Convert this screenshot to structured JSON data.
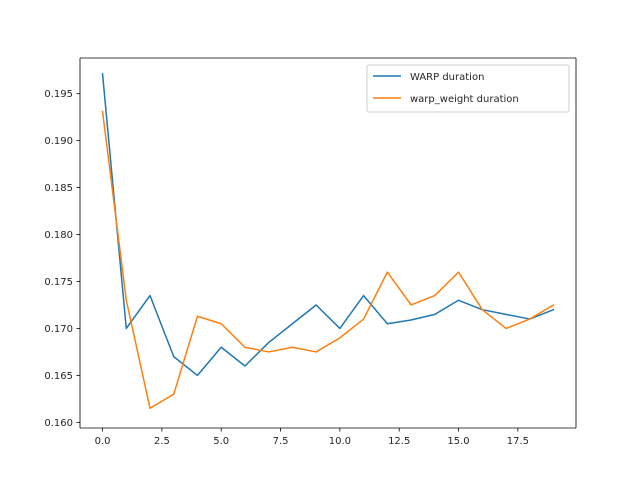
{
  "chart_data": {
    "type": "line",
    "title": "",
    "xlabel": "",
    "ylabel": "",
    "x": [
      0,
      1,
      2,
      3,
      4,
      5,
      6,
      7,
      8,
      9,
      10,
      11,
      12,
      13,
      14,
      15,
      16,
      17,
      18,
      19
    ],
    "xlim": [
      -0.95,
      19.95
    ],
    "ylim": [
      0.1594,
      0.1988
    ],
    "xticks": [
      0.0,
      2.5,
      5.0,
      7.5,
      10.0,
      12.5,
      15.0,
      17.5
    ],
    "xtick_labels": [
      "0.0",
      "2.5",
      "5.0",
      "7.5",
      "10.0",
      "12.5",
      "15.0",
      "17.5"
    ],
    "yticks": [
      0.16,
      0.165,
      0.17,
      0.175,
      0.18,
      0.185,
      0.19,
      0.195
    ],
    "ytick_labels": [
      "0.160",
      "0.165",
      "0.170",
      "0.175",
      "0.180",
      "0.185",
      "0.190",
      "0.195"
    ],
    "grid": false,
    "legend_position": "upper right",
    "series": [
      {
        "name": "WARP duration",
        "color": "#1f77b4",
        "values": [
          0.1971,
          0.17,
          0.1735,
          0.167,
          0.165,
          0.168,
          0.166,
          0.1685,
          0.1705,
          0.1725,
          0.17,
          0.1735,
          0.1705,
          0.1709,
          0.1715,
          0.173,
          0.172,
          0.1715,
          0.171,
          0.172
        ]
      },
      {
        "name": "warp_weight duration",
        "color": "#ff7f0e",
        "values": [
          0.1931,
          0.173,
          0.1615,
          0.163,
          0.1713,
          0.1705,
          0.168,
          0.1675,
          0.168,
          0.1675,
          0.169,
          0.171,
          0.176,
          0.1725,
          0.1735,
          0.176,
          0.172,
          0.17,
          0.171,
          0.1725
        ]
      }
    ]
  }
}
